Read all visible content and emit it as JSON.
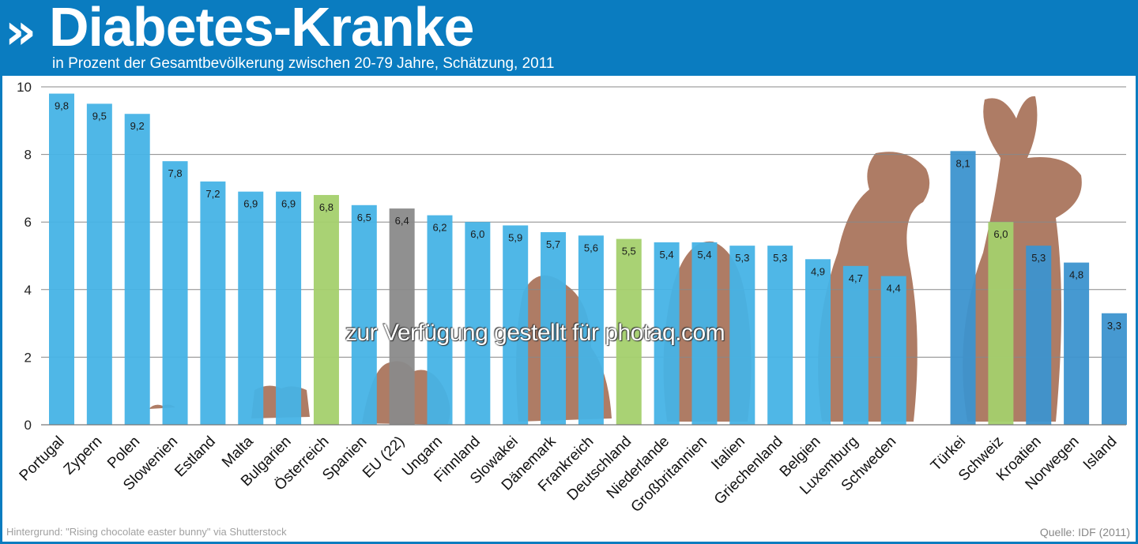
{
  "header": {
    "logo_glyph": "»",
    "title": "Diabetes-Kranke",
    "subtitle": "in Prozent der Gesamtbevölkerung zwischen 20-79 Jahre, Schätzung, 2011"
  },
  "footer": {
    "background_credit": "Hintergrund: \"Rising chocolate easter bunny\" via Shutterstock",
    "source": "Quelle: IDF (2011)"
  },
  "watermark": "zur Verfügung gestellt für photaq.com",
  "colors": {
    "header": "#0a7cc0",
    "bar": "#46b3e6",
    "bar_group2": "#3c93cf",
    "highlight": "#a4d06d",
    "eu": "#8a8a8a",
    "chocolate": "#a0654a"
  },
  "chart_data": {
    "type": "bar",
    "ylim": [
      0,
      10
    ],
    "yticks": [
      0,
      2,
      4,
      6,
      8,
      10
    ],
    "grid": true,
    "categories": [
      "Portugal",
      "Zypern",
      "Polen",
      "Slowenien",
      "Estland",
      "Malta",
      "Bulgarien",
      "Österreich",
      "Spanien",
      "EU (22)",
      "Ungarn",
      "Finnland",
      "Slowakei",
      "Dänemark",
      "Frankreich",
      "Deutschland",
      "Niederlande",
      "Großbritannien",
      "Italien",
      "Griechenland",
      "Belgien",
      "Luxemburg",
      "Schweden",
      "Türkei",
      "Schweiz",
      "Kroatien",
      "Norwegen",
      "Island"
    ],
    "values": [
      9.8,
      9.5,
      9.2,
      7.8,
      7.2,
      6.9,
      6.9,
      6.8,
      6.5,
      6.4,
      6.2,
      6.0,
      5.9,
      5.7,
      5.6,
      5.5,
      5.4,
      5.4,
      5.3,
      5.3,
      4.9,
      4.7,
      4.4,
      8.1,
      6.0,
      5.3,
      4.8,
      3.3
    ],
    "labels": [
      "9,8",
      "9,5",
      "9,2",
      "7,8",
      "7,2",
      "6,9",
      "6,9",
      "6,8",
      "6,5",
      "6,4",
      "6,2",
      "6,0",
      "5,9",
      "5,7",
      "5,6",
      "5,5",
      "5,4",
      "5,4",
      "5,3",
      "5,3",
      "4,9",
      "4,7",
      "4,4",
      "8,1",
      "6,0",
      "5,3",
      "4,8",
      "3,3"
    ],
    "highlight": [
      "Österreich",
      "Deutschland",
      "Schweiz"
    ],
    "reference": [
      "EU (22)"
    ],
    "group2": [
      "Türkei",
      "Schweiz",
      "Kroatien",
      "Norwegen",
      "Island"
    ]
  }
}
